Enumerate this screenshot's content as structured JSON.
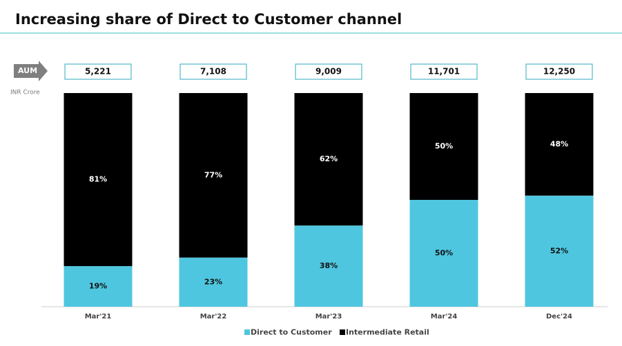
{
  "chart_data": {
    "type": "stacked_bar",
    "title": "Increasing share of Direct to Customer channel",
    "categories": [
      "Mar'21",
      "Mar'22",
      "Mar'23",
      "Mar'24",
      "Dec'24"
    ],
    "series": [
      {
        "name": "Direct to Customer",
        "color": "#4fc6df",
        "values": [
          19,
          23,
          38,
          50,
          52
        ],
        "value_labels": [
          "19%",
          "23%",
          "38%",
          "50%",
          "52%"
        ]
      },
      {
        "name": "Intermediate Retail",
        "color": "#000000",
        "values": [
          81,
          77,
          62,
          50,
          48
        ],
        "value_labels": [
          "81%",
          "77%",
          "62%",
          "50%",
          "48%"
        ]
      }
    ],
    "aum": {
      "label": "AUM",
      "unit": "INR Crore",
      "values": [
        5221,
        7108,
        9009,
        11701,
        12250
      ],
      "value_labels": [
        "5,221",
        "7,108",
        "9,009",
        "11,701",
        "12,250"
      ]
    },
    "legend": "bottom"
  }
}
